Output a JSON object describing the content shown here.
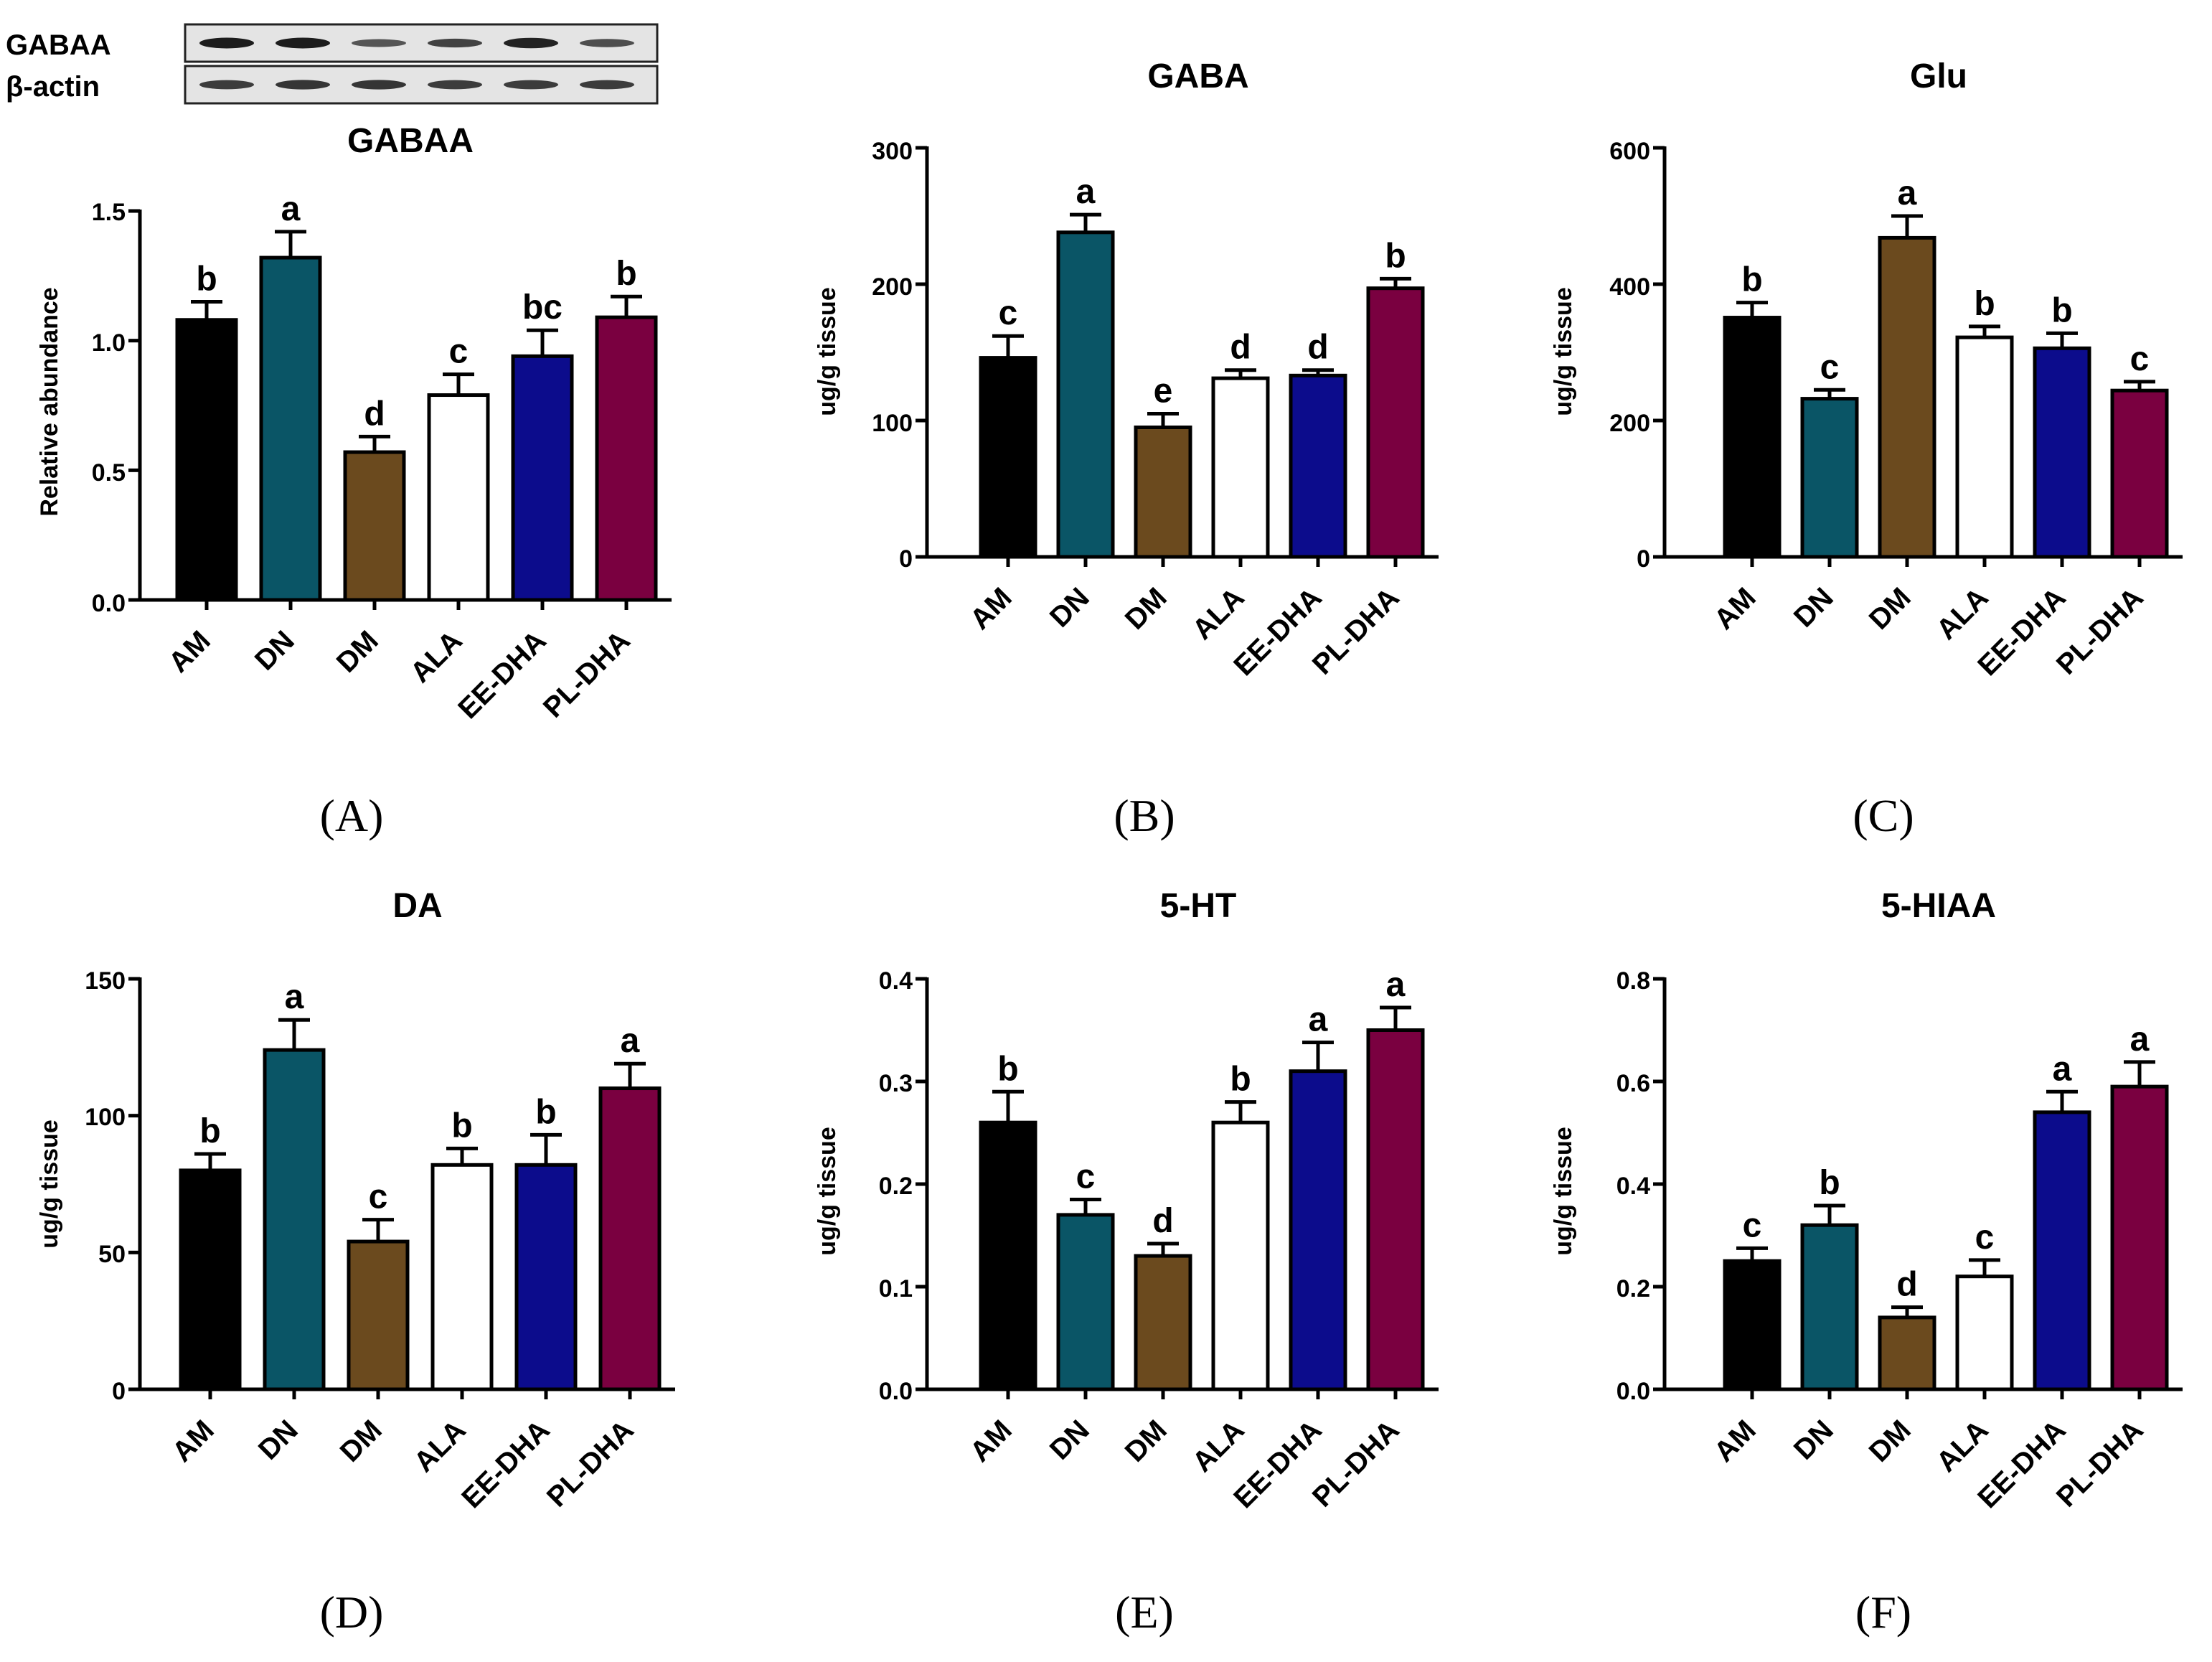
{
  "blot": {
    "rows": [
      {
        "label": "GABAA",
        "intensity": [
          1.0,
          1.0,
          0.55,
          0.7,
          0.95,
          0.6
        ]
      },
      {
        "label": "β-actin",
        "intensity": [
          0.75,
          0.8,
          0.8,
          0.75,
          0.75,
          0.75
        ]
      }
    ]
  },
  "chart_data": [
    {
      "id": "A",
      "type": "bar",
      "title": "GABAA",
      "caption": "(A)",
      "xlabel": "",
      "ylabel": "Relative abundance",
      "categories": [
        "AM",
        "DN",
        "DM",
        "ALA",
        "EE-DHA",
        "PL-DHA"
      ],
      "values": [
        1.08,
        1.32,
        0.57,
        0.79,
        0.94,
        1.09
      ],
      "errors": [
        0.07,
        0.1,
        0.06,
        0.08,
        0.1,
        0.08
      ],
      "letters": [
        "b",
        "a",
        "d",
        "c",
        "bc",
        "b"
      ],
      "ylim": [
        0,
        1.5
      ],
      "yticks": [
        "0.0",
        "0.5",
        "1.0",
        "1.5"
      ],
      "ytick_values": [
        0,
        0.5,
        1.0,
        1.5
      ],
      "colors": [
        "#000000",
        "#0a5566",
        "#6b4a1e",
        "#ffffff",
        "#0c0c8c",
        "#7a0040"
      ]
    },
    {
      "id": "B",
      "type": "bar",
      "title": "GABA",
      "caption": "(B)",
      "xlabel": "",
      "ylabel": "ug/g tissue",
      "categories": [
        "AM",
        "DN",
        "DM",
        "ALA",
        "EE-DHA",
        "PL-DHA"
      ],
      "values": [
        146,
        238,
        95,
        131,
        133,
        197
      ],
      "errors": [
        16,
        13,
        10,
        6,
        4,
        7
      ],
      "letters": [
        "c",
        "a",
        "e",
        "d",
        "d",
        "b"
      ],
      "ylim": [
        0,
        300
      ],
      "yticks": [
        "0",
        "100",
        "200",
        "300"
      ],
      "ytick_values": [
        0,
        100,
        200,
        300
      ],
      "colors": [
        "#000000",
        "#0a5566",
        "#6b4a1e",
        "#ffffff",
        "#0c0c8c",
        "#7a0040"
      ]
    },
    {
      "id": "C",
      "type": "bar",
      "title": "Glu",
      "caption": "(C)",
      "xlabel": "",
      "ylabel": "ug/g tissue",
      "categories": [
        "AM",
        "DN",
        "DM",
        "ALA",
        "EE-DHA",
        "PL-DHA"
      ],
      "values": [
        351,
        232,
        468,
        322,
        306,
        244
      ],
      "errors": [
        22,
        13,
        32,
        16,
        22,
        13
      ],
      "letters": [
        "b",
        "c",
        "a",
        "b",
        "b",
        "c"
      ],
      "ylim": [
        0,
        600
      ],
      "yticks": [
        "0",
        "200",
        "400",
        "600"
      ],
      "ytick_values": [
        0,
        200,
        400,
        600
      ],
      "colors": [
        "#000000",
        "#0a5566",
        "#6b4a1e",
        "#ffffff",
        "#0c0c8c",
        "#7a0040"
      ]
    },
    {
      "id": "D",
      "type": "bar",
      "title": "DA",
      "caption": "(D)",
      "xlabel": "",
      "ylabel": "ug/g tissue",
      "categories": [
        "AM",
        "DN",
        "DM",
        "ALA",
        "EE-DHA",
        "PL-DHA"
      ],
      "values": [
        80,
        124,
        54,
        82,
        82,
        110
      ],
      "errors": [
        6,
        11,
        8,
        6,
        11,
        9
      ],
      "letters": [
        "b",
        "a",
        "c",
        "b",
        "b",
        "a"
      ],
      "ylim": [
        0,
        150
      ],
      "yticks": [
        "0",
        "50",
        "100",
        "150"
      ],
      "ytick_values": [
        0,
        50,
        100,
        150
      ],
      "colors": [
        "#000000",
        "#0a5566",
        "#6b4a1e",
        "#ffffff",
        "#0c0c8c",
        "#7a0040"
      ]
    },
    {
      "id": "E",
      "type": "bar",
      "title": "5-HT",
      "caption": "(E)",
      "xlabel": "",
      "ylabel": "ug/g tissue",
      "categories": [
        "AM",
        "DN",
        "DM",
        "ALA",
        "EE-DHA",
        "PL-DHA"
      ],
      "values": [
        0.26,
        0.17,
        0.13,
        0.26,
        0.31,
        0.35
      ],
      "errors": [
        0.03,
        0.015,
        0.012,
        0.02,
        0.028,
        0.022
      ],
      "letters": [
        "b",
        "c",
        "d",
        "b",
        "a",
        "a"
      ],
      "ylim": [
        0,
        0.4
      ],
      "yticks": [
        "0.0",
        "0.1",
        "0.2",
        "0.3",
        "0.4"
      ],
      "ytick_values": [
        0,
        0.1,
        0.2,
        0.3,
        0.4
      ],
      "colors": [
        "#000000",
        "#0a5566",
        "#6b4a1e",
        "#ffffff",
        "#0c0c8c",
        "#7a0040"
      ]
    },
    {
      "id": "F",
      "type": "bar",
      "title": "5-HIAA",
      "caption": "(F)",
      "xlabel": "",
      "ylabel": "ug/g tissue",
      "categories": [
        "AM",
        "DN",
        "DM",
        "ALA",
        "EE-DHA",
        "PL-DHA"
      ],
      "values": [
        0.25,
        0.32,
        0.14,
        0.22,
        0.54,
        0.59
      ],
      "errors": [
        0.025,
        0.038,
        0.02,
        0.032,
        0.04,
        0.048
      ],
      "letters": [
        "c",
        "b",
        "d",
        "c",
        "a",
        "a"
      ],
      "ylim": [
        0,
        0.8
      ],
      "yticks": [
        "0.0",
        "0.2",
        "0.4",
        "0.6",
        "0.8"
      ],
      "ytick_values": [
        0,
        0.2,
        0.4,
        0.6,
        0.8
      ],
      "colors": [
        "#000000",
        "#0a5566",
        "#6b4a1e",
        "#ffffff",
        "#0c0c8c",
        "#7a0040"
      ]
    }
  ]
}
